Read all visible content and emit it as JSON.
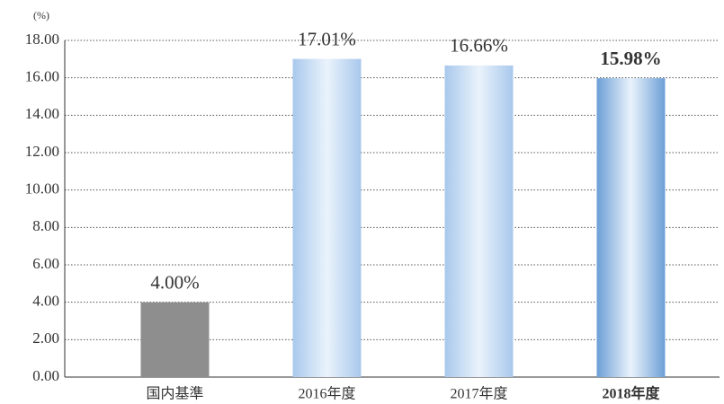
{
  "chart_data": {
    "type": "bar",
    "y_unit_label": "(%)",
    "categories": [
      "国内基準",
      "2016年度",
      "2017年度",
      "2018年度"
    ],
    "values": [
      4.0,
      17.01,
      16.66,
      15.98
    ],
    "value_labels": [
      "4.00%",
      "17.01%",
      "16.66%",
      "15.98%"
    ],
    "colors": [
      "#8e8e8e",
      "#a9c8ec",
      "#a9c8ec",
      "#6c9fd6"
    ],
    "bold": [
      false,
      false,
      false,
      true
    ],
    "ylim": [
      0,
      18
    ],
    "yticks": [
      {
        "value": 0,
        "label": "0.00"
      },
      {
        "value": 2,
        "label": "2.00"
      },
      {
        "value": 4,
        "label": "4.00"
      },
      {
        "value": 6,
        "label": "6.00"
      },
      {
        "value": 8,
        "label": "8.00"
      },
      {
        "value": 10,
        "label": "10.00"
      },
      {
        "value": 12,
        "label": "12.00"
      },
      {
        "value": 14,
        "label": "14.00"
      },
      {
        "value": 16,
        "label": "16.00"
      },
      {
        "value": 18,
        "label": "18.00"
      }
    ],
    "grid": true
  }
}
